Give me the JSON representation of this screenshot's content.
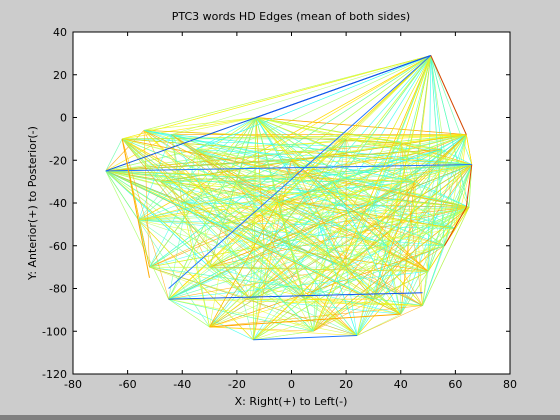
{
  "window": {
    "background": "#cccccc",
    "plot_background": "#ffffff",
    "bottom_bar": "#808080"
  },
  "chart_data": {
    "type": "network",
    "title": "PTC3 words HD Edges (mean of both sides)",
    "xlabel": "X: Right(+) to Left(-)",
    "ylabel": "Y: Anterior(+) to Posterior(-)",
    "xlim": [
      -80,
      80
    ],
    "ylim": [
      -120,
      40
    ],
    "xticks": [
      -80,
      -60,
      -40,
      -20,
      0,
      20,
      40,
      60,
      80
    ],
    "yticks": [
      -120,
      -100,
      -80,
      -60,
      -40,
      -20,
      0,
      20,
      40
    ],
    "xtick_labels": [
      "-80",
      "-60",
      "-40",
      "-20",
      "0",
      "20",
      "40",
      "60",
      "80"
    ],
    "ytick_labels": [
      "-120",
      "-100",
      "-80",
      "-60",
      "-40",
      "-20",
      "0",
      "20",
      "40"
    ],
    "grid": false,
    "edge_colors": [
      "#33ffee",
      "#66ffaa",
      "#aaff66",
      "#ddff33",
      "#ffee00",
      "#ffaa00",
      "#2277ff",
      "#1155ee",
      "#dd4400"
    ],
    "nodes": [
      [
        -68,
        -25
      ],
      [
        -62,
        -10
      ],
      [
        -54,
        -6
      ],
      [
        -44,
        -8
      ],
      [
        -13,
        0
      ],
      [
        51,
        29
      ],
      [
        64,
        -8
      ],
      [
        66,
        -22
      ],
      [
        65,
        -42
      ],
      [
        60,
        -52
      ],
      [
        56,
        -60
      ],
      [
        50,
        -72
      ],
      [
        48,
        -88
      ],
      [
        40,
        -92
      ],
      [
        24,
        -102
      ],
      [
        8,
        -100
      ],
      [
        -14,
        -104
      ],
      [
        -30,
        -98
      ],
      [
        -45,
        -85
      ],
      [
        -52,
        -70
      ],
      [
        -56,
        -48
      ],
      [
        -40,
        -40
      ],
      [
        -20,
        -30
      ],
      [
        0,
        -20
      ],
      [
        20,
        -10
      ],
      [
        40,
        -12
      ],
      [
        -10,
        -60
      ],
      [
        10,
        -50
      ],
      [
        30,
        -40
      ],
      [
        -30,
        -70
      ],
      [
        20,
        -70
      ],
      [
        -15,
        -85
      ],
      [
        5,
        -85
      ],
      [
        35,
        -60
      ],
      [
        45,
        -30
      ],
      [
        -35,
        -15
      ],
      [
        15,
        -30
      ],
      [
        -5,
        -40
      ],
      [
        55,
        -15
      ],
      [
        -48,
        -30
      ],
      [
        30,
        -85
      ],
      [
        -25,
        -50
      ]
    ],
    "highlighted_edges": [
      {
        "from": [
          -68,
          -25
        ],
        "to": [
          51,
          29
        ],
        "color": "#1155ee"
      },
      {
        "from": [
          -45,
          -80
        ],
        "to": [
          51,
          29
        ],
        "color": "#2277ff"
      },
      {
        "from": [
          -13,
          0
        ],
        "to": [
          51,
          29
        ],
        "color": "#1155ee"
      },
      {
        "from": [
          51,
          29
        ],
        "to": [
          64,
          -8
        ],
        "color": "#dd4400"
      },
      {
        "from": [
          66,
          -22
        ],
        "to": [
          64,
          -42
        ],
        "color": "#dd4400"
      },
      {
        "from": [
          -68,
          -25
        ],
        "to": [
          66,
          -22
        ],
        "color": "#2277ff"
      },
      {
        "from": [
          -45,
          -85
        ],
        "to": [
          48,
          -82
        ],
        "color": "#1155ee"
      },
      {
        "from": [
          -14,
          -104
        ],
        "to": [
          24,
          -102
        ],
        "color": "#2277ff"
      },
      {
        "from": [
          -62,
          -10
        ],
        "to": [
          -52,
          -75
        ],
        "color": "#ffaa00"
      },
      {
        "from": [
          -30,
          -98
        ],
        "to": [
          40,
          -92
        ],
        "color": "#ffaa00"
      },
      {
        "from": [
          56,
          -60
        ],
        "to": [
          64,
          -42
        ],
        "color": "#dd4400"
      }
    ]
  }
}
